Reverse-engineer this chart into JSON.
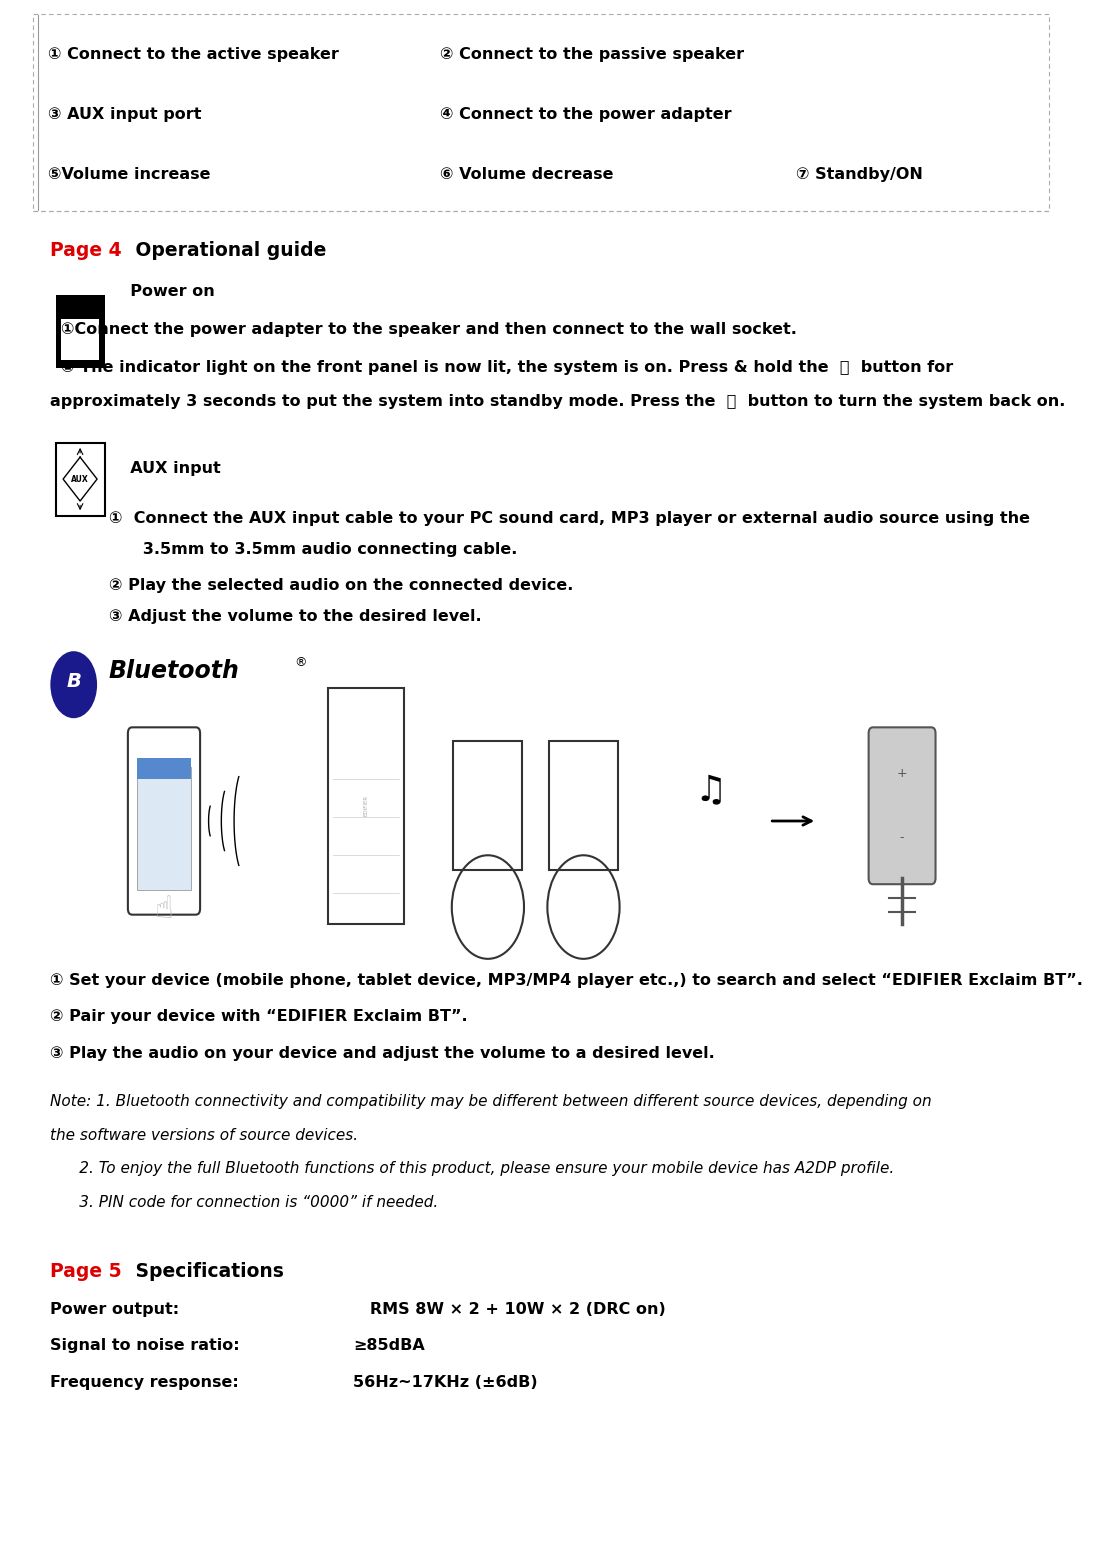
{
  "bg_color": "#ffffff",
  "text_color": "#000000",
  "red_color": "#dd0000",
  "page_width": 10.62,
  "page_height": 15.23,
  "dpi": 100,
  "top_box": {
    "items_col1": [
      "① Connect to the active speaker",
      "③ AUX input port",
      "⑤Volume increase"
    ],
    "items_col2": [
      "② Connect to the passive speaker",
      "④ Connect to the power adapter",
      "⑥ Volume decrease"
    ],
    "item_col3": "⑦ Standby/ON",
    "border_color": "#bbbbbb"
  },
  "page4_label": "Page 4",
  "page4_title": " Operational guide",
  "power_on_label": "  Power on",
  "power_on_text1": "①Connect the power adapter to the speaker and then connect to the wall socket.",
  "power_on_text2_a": "② The indicator light on the front panel is now lit, the system is on. Press & hold the  ⏻  button for",
  "power_on_text2_b": "approximately 3 seconds to put the system into standby mode. Press the  ⏻  button to turn the system back on.",
  "aux_label": "  AUX input",
  "aux_item1a": "①  Connect the AUX input cable to your PC sound card, MP3 player or external audio source using the",
  "aux_item1b": "      3.5mm to 3.5mm audio connecting cable.",
  "aux_item2": "② Play the selected audio on the connected device.",
  "aux_item3": "③ Adjust the volume to the desired level.",
  "bluetooth_items": [
    "① Set your device (mobile phone, tablet device, MP3/MP4 player etc.,) to search and select “EDIFIER Exclaim BT”.",
    "② Pair your device with “EDIFIER Exclaim BT”.",
    "③ Play the audio on your device and adjust the volume to a desired level."
  ],
  "note_line1": "Note: 1. Bluetooth connectivity and compatibility may be different between different source devices, depending on",
  "note_line2": "the software versions of source devices.",
  "note_line3": "      2. To enjoy the full Bluetooth functions of this product, please ensure your mobile device has A2DP profile.",
  "note_line4": "      3. PIN code for connection is “0000” if needed.",
  "page5_label": "Page 5",
  "page5_title": " Specifications",
  "spec_labels": [
    "Power output:",
    "Signal to noise ratio:",
    "Frequency response:"
  ],
  "spec_values": [
    "   RMS 8W × 2 + 10W × 2 (DRC on)",
    "≥85dBA",
    "56Hz~17KHz (±6dB)"
  ],
  "main_fontsize": 11.5,
  "body_fontsize": 11.5,
  "title_fontsize": 13.5,
  "note_fontsize": 11.0,
  "lmargin": 0.038,
  "rmargin": 0.975
}
